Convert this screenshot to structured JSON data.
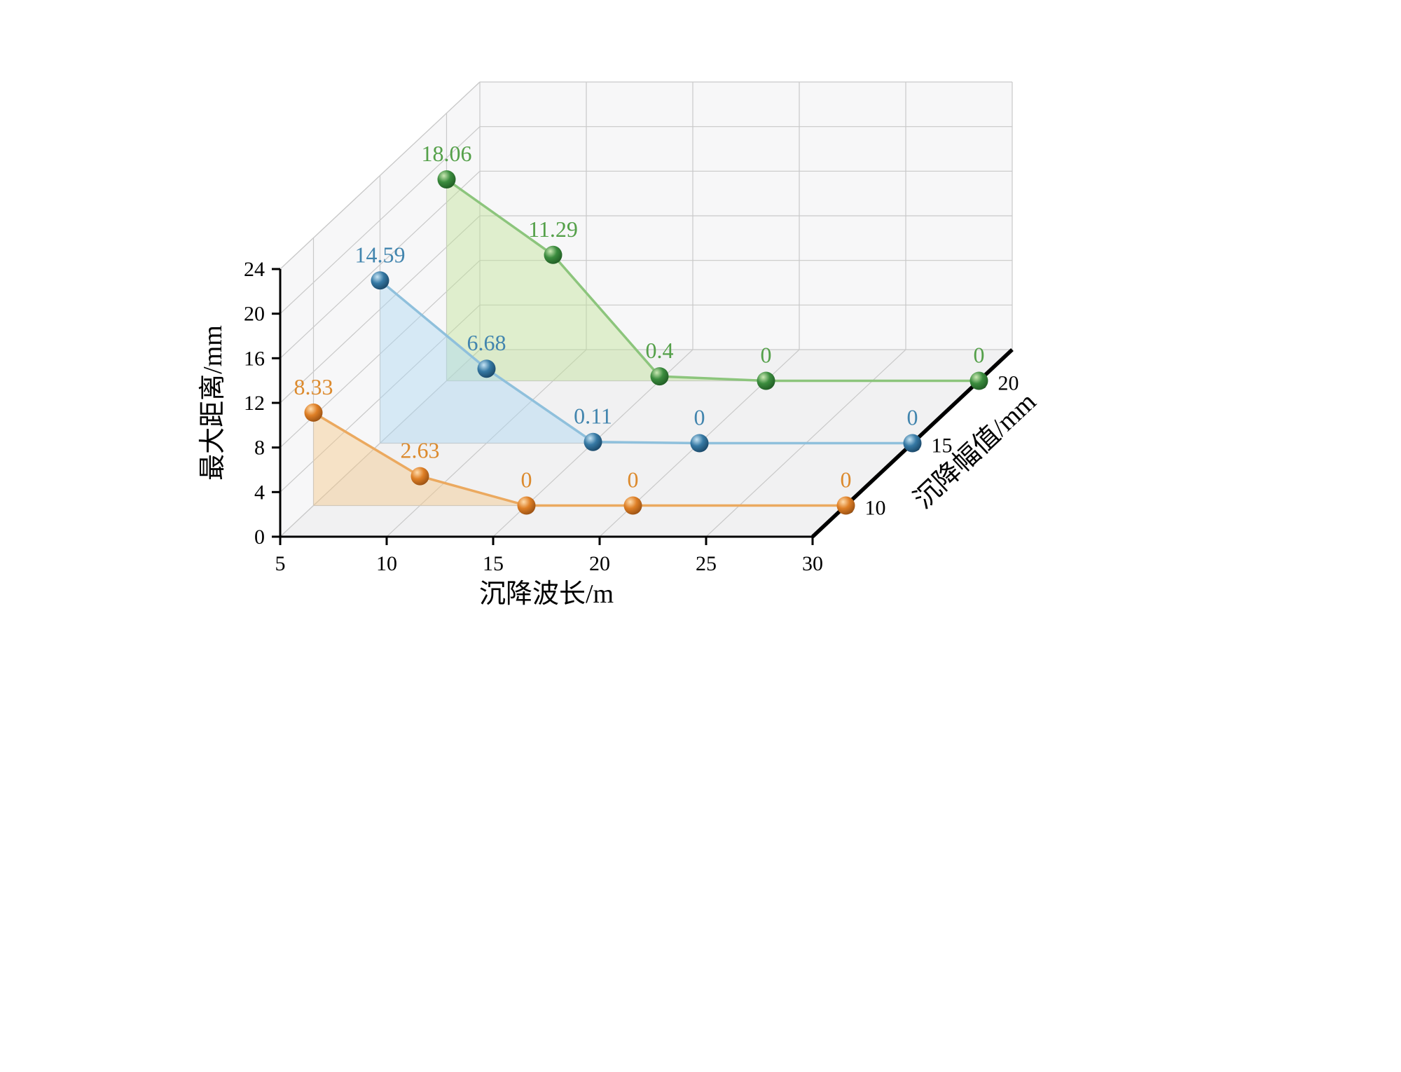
{
  "figure": {
    "background": "#ffffff"
  },
  "chart_data": {
    "type": "line",
    "projection": "3d",
    "title": "",
    "xlabel": "沉降波长/m",
    "ylabel": "沉降幅值/mm",
    "zlabel": "最大距离/mm",
    "x": [
      5,
      10,
      15,
      20,
      30
    ],
    "x_ticks": [
      5,
      10,
      15,
      20,
      25,
      30
    ],
    "y_ticks": [
      10,
      15,
      20
    ],
    "z_ticks": [
      0,
      4,
      8,
      12,
      16,
      20,
      24
    ],
    "xlim": [
      5,
      30
    ],
    "ylim": [
      7.5,
      22.5
    ],
    "zlim": [
      0,
      24
    ],
    "grid": true,
    "legend_position": "none",
    "series": [
      {
        "name": "沉降幅值 10 mm",
        "y": 10,
        "values": [
          8.33,
          2.63,
          0,
          0,
          0
        ],
        "point_labels": [
          "8.33",
          "2.63",
          "0",
          "0",
          "0"
        ],
        "line_color": "#EBA95F",
        "fill_color": "rgba(244, 200, 138, 0.45)",
        "marker_color": "#DE7F26",
        "marker_highlight": "#FFDCAC",
        "marker_dark": "#8F4A10",
        "label_color": "#DC8A2D"
      },
      {
        "name": "沉降幅值 15 mm",
        "y": 15,
        "values": [
          14.59,
          6.68,
          0.11,
          0,
          0
        ],
        "point_labels": [
          "14.59",
          "6.68",
          "0.11",
          "0",
          "0"
        ],
        "line_color": "#8FC0DC",
        "fill_color": "rgba(172, 216, 242, 0.45)",
        "marker_color": "#3679A4",
        "marker_highlight": "#C6E4F4",
        "marker_dark": "#16405F",
        "label_color": "#4285AE"
      },
      {
        "name": "沉降幅值 20 mm",
        "y": 20,
        "values": [
          18.06,
          11.29,
          0.4,
          0,
          0
        ],
        "point_labels": [
          "18.06",
          "11.29",
          "0.4",
          "0",
          "0"
        ],
        "line_color": "#8CC57C",
        "fill_color": "rgba(193, 227, 154, 0.45)",
        "marker_color": "#3B8C3E",
        "marker_highlight": "#CBE9B4",
        "marker_dark": "#1C5520",
        "label_color": "#54A049"
      }
    ],
    "axis_color": "#000000",
    "grid_color": "#c9c9c9",
    "wall_color": "#f7f7f8",
    "floor_color": "#f1f1f2"
  }
}
